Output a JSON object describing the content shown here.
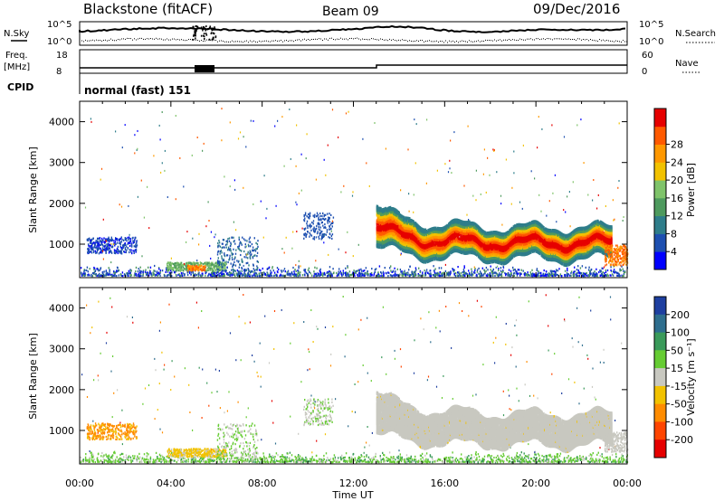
{
  "header": {
    "station": "Blackstone (fitACF)",
    "beam": "Beam 09",
    "date": "09/Dec/2016"
  },
  "status_panel": {
    "nsky_label": "N.Sky",
    "nsky_ticks": [
      "10^5",
      "10^0"
    ],
    "nsearch_label": "N.Search",
    "nsearch_ticks": [
      "10^5",
      "10^0"
    ],
    "freq_label": "Freq.",
    "freq_unit": "[MHz]",
    "freq_ticks": [
      "18",
      "8"
    ],
    "nave_label": "Nave",
    "nave_ticks": [
      "60",
      "0"
    ],
    "cpid_label": "CPID",
    "cpid_value": "normal (fast) 151"
  },
  "chart_data": [
    {
      "type": "heatmap",
      "name": "power",
      "ylabel": "Slant Range [km]",
      "xlabel": "",
      "ylim": [
        180,
        4500
      ],
      "xlim": [
        0,
        24
      ],
      "yticks": [
        "1000",
        "2000",
        "3000",
        "4000"
      ],
      "ytick_values": [
        1000,
        2000,
        3000,
        4000
      ],
      "colorbar": {
        "label": "Power [dB]",
        "ticks": [
          "4",
          "8",
          "12",
          "16",
          "20",
          "24",
          "28"
        ],
        "colors": [
          "#0000ff",
          "#1d4fb0",
          "#2e7d8a",
          "#4e9a5e",
          "#7fc36a",
          "#f2c200",
          "#ff9800",
          "#ff5a00",
          "#e60000"
        ]
      }
    },
    {
      "type": "heatmap",
      "name": "velocity",
      "ylabel": "Slant Range [km]",
      "xlabel": "Time UT",
      "ylim": [
        180,
        4500
      ],
      "xlim": [
        0,
        24
      ],
      "yticks": [
        "1000",
        "2000",
        "3000",
        "4000"
      ],
      "ytick_values": [
        1000,
        2000,
        3000,
        4000
      ],
      "xticks": [
        "00:00",
        "04:00",
        "08:00",
        "12:00",
        "16:00",
        "20:00",
        "00:00"
      ],
      "xtick_values": [
        0,
        4,
        8,
        12,
        16,
        20,
        24
      ],
      "colorbar": {
        "label": "Velocity [m s⁻¹]",
        "ticks": [
          "200",
          "100",
          "50",
          "15",
          "-15",
          "-50",
          "-100",
          "-200"
        ],
        "colors": [
          "#1e3fa0",
          "#2e6e8e",
          "#3a9a5a",
          "#66cc33",
          "#c8c8c0",
          "#f2c200",
          "#ff8c00",
          "#ff4500",
          "#e60000"
        ]
      }
    }
  ]
}
